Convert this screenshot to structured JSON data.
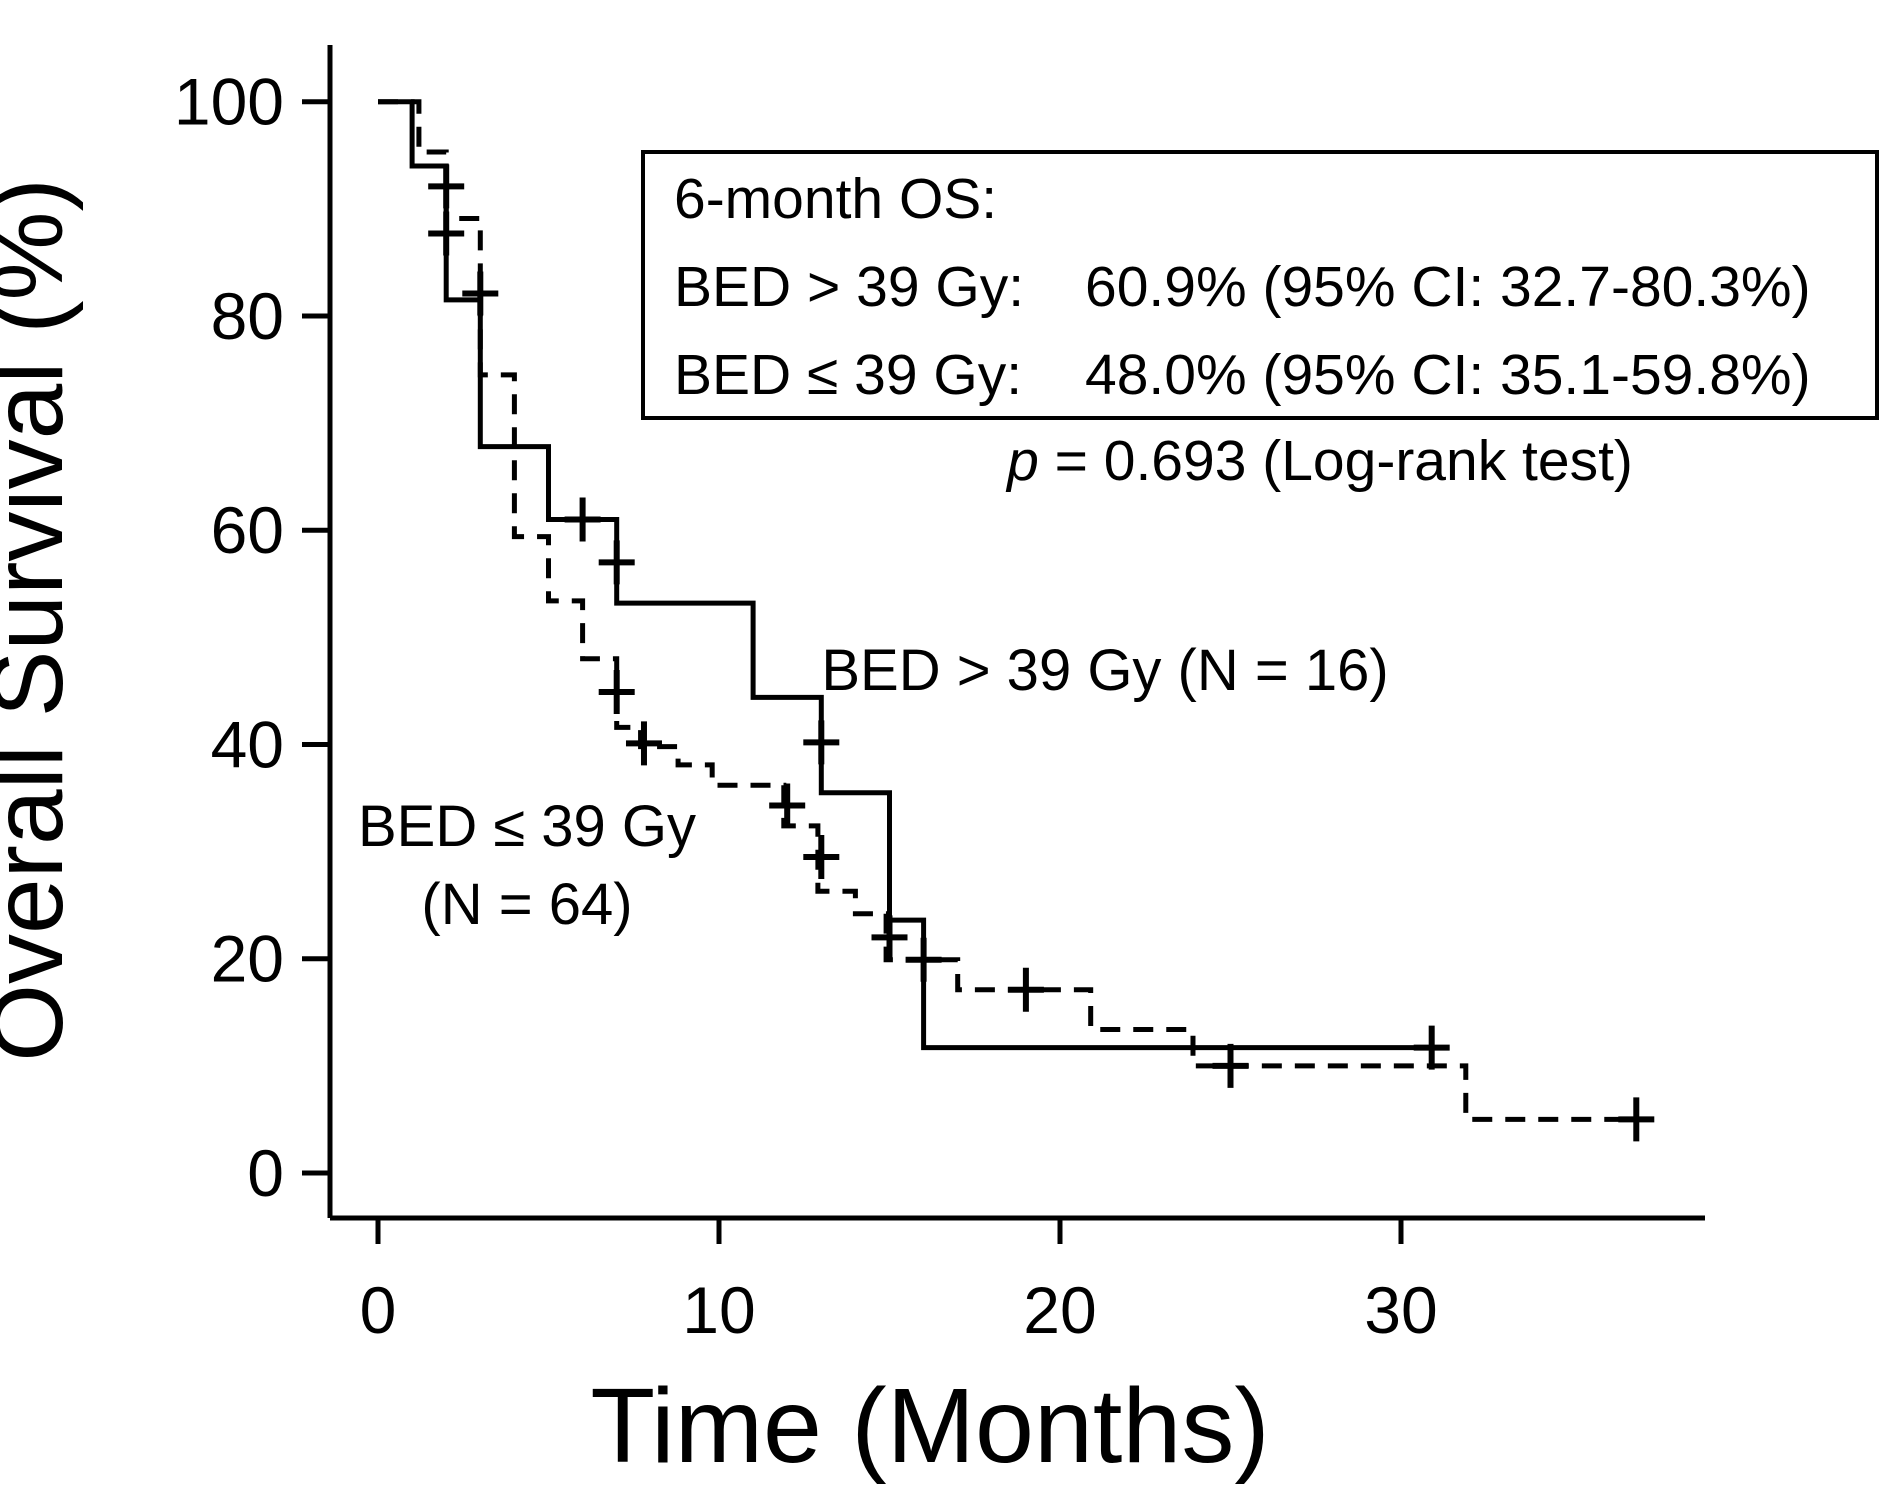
{
  "figure": {
    "background": "#ffffff",
    "ink_color": "#000000"
  },
  "chart_data": {
    "type": "line",
    "subtype": "kaplan-meier-step",
    "title": "",
    "xlabel": "Time (Months)",
    "ylabel": "Overall Survival (%)",
    "xlim": [
      0,
      38
    ],
    "ylim": [
      0,
      100
    ],
    "x_ticks": [
      0,
      10,
      20,
      30
    ],
    "y_ticks": [
      0,
      20,
      40,
      60,
      80,
      100
    ],
    "grid": false,
    "legend_position": "on-plot-labels",
    "series": [
      {
        "name": "BED > 39 Gy",
        "n": 16,
        "label": "BED > 39 Gy (N = 16)",
        "line_style": "solid",
        "steps": [
          [
            0,
            100
          ],
          [
            1,
            94
          ],
          [
            2,
            81.5
          ],
          [
            3,
            67.8
          ],
          [
            5,
            61
          ],
          [
            7,
            53.2
          ],
          [
            11,
            44.4
          ],
          [
            13,
            35.5
          ],
          [
            15,
            23.6
          ],
          [
            16,
            11.7
          ]
        ],
        "end_time": 31.4,
        "censor_marks": [
          [
            2,
            87.7
          ],
          [
            6,
            61
          ],
          [
            7,
            57
          ],
          [
            13,
            40.2
          ],
          [
            15,
            22
          ],
          [
            30.9,
            11.7
          ]
        ]
      },
      {
        "name": "BED ≤ 39 Gy",
        "n": 64,
        "label_lines": [
          "BED ≤ 39 Gy",
          "(N = 64)"
        ],
        "line_style": "dashed",
        "steps": [
          [
            0,
            100
          ],
          [
            1.2,
            95.3
          ],
          [
            2,
            89.1
          ],
          [
            3,
            74.5
          ],
          [
            4,
            59.4
          ],
          [
            5,
            53.4
          ],
          [
            6,
            48
          ],
          [
            7,
            41.6
          ],
          [
            7.7,
            39.8
          ],
          [
            8.8,
            38.1
          ],
          [
            9.8,
            36.2
          ],
          [
            11.9,
            32.4
          ],
          [
            12.9,
            26.3
          ],
          [
            14,
            24.2
          ],
          [
            14.9,
            19.9
          ],
          [
            17,
            17.1
          ],
          [
            20.9,
            13.4
          ],
          [
            23.9,
            10
          ],
          [
            31.9,
            5
          ]
        ],
        "end_time": 37.3,
        "censor_marks": [
          [
            2,
            92.1
          ],
          [
            3,
            82.1
          ],
          [
            7,
            44.9
          ],
          [
            7.8,
            40.1
          ],
          [
            12,
            34.3
          ],
          [
            13,
            29.5
          ],
          [
            16,
            19.9
          ],
          [
            19,
            17.1
          ],
          [
            25,
            10
          ],
          [
            36.9,
            5
          ]
        ]
      }
    ],
    "stats_box": {
      "title": "6-month OS:",
      "rows": [
        {
          "label": "BED > 39 Gy:",
          "value": "60.9% (95% CI: 32.7-80.3%)"
        },
        {
          "label": "BED ≤ 39 Gy:",
          "value": "48.0% (95% CI: 35.1-59.8%)"
        }
      ]
    },
    "p_note": {
      "p": "p",
      "rest": " = 0.693 (Log-rank test)"
    }
  }
}
